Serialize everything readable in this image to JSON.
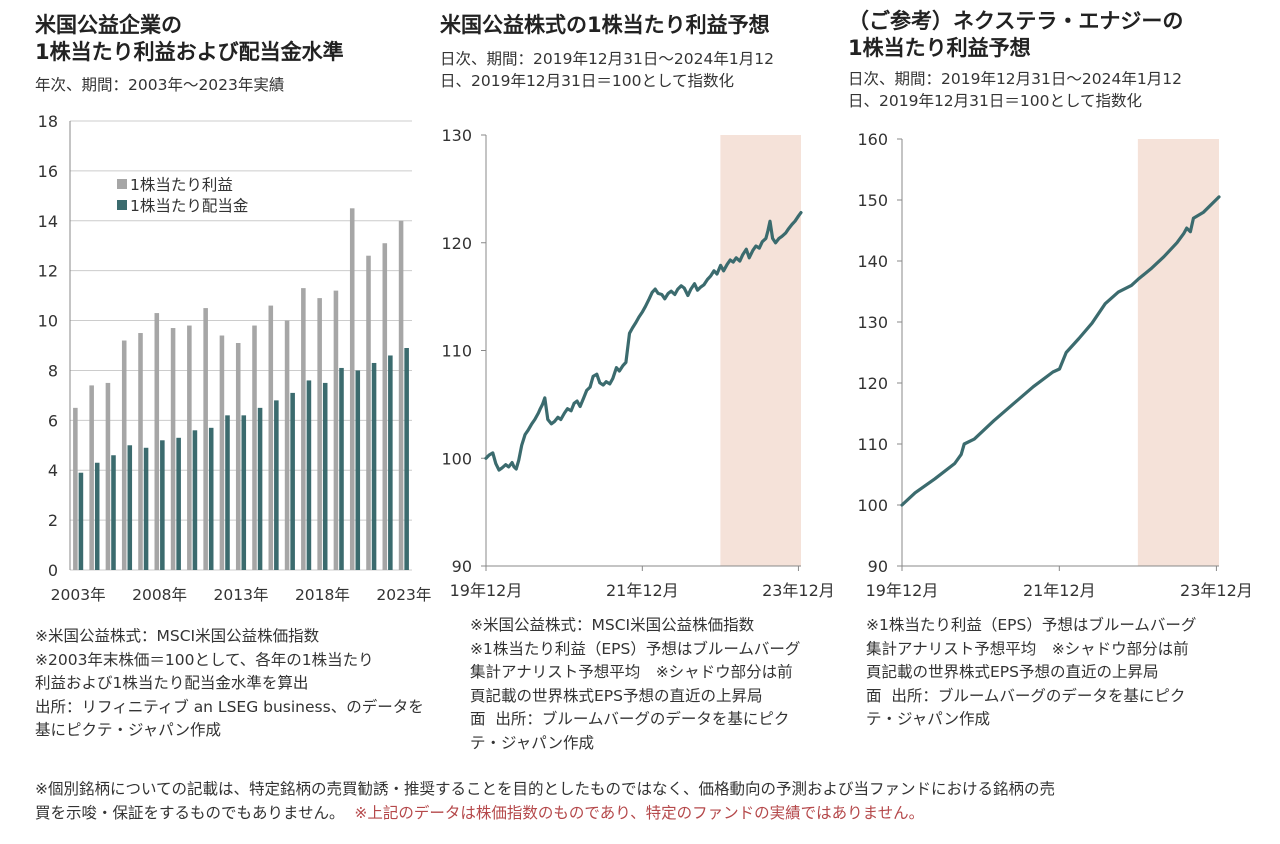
{
  "colors": {
    "eps": "#a6a6a6",
    "dividend": "#3b6b6e",
    "line": "#3b6b6e",
    "shade": "#f5e2d9",
    "axis": "#888888",
    "grid": "#cccccc",
    "red": "#b5494b"
  },
  "panel1": {
    "title": "米国公益企業の\n1株当たり利益および配当金水準",
    "subtitle": "年次、期間：2003年～2023年実績",
    "note": "※米国公益株式：MSCI米国公益株価指数\n※2003年末株価＝100として、各年の1株当たり\n利益および1株当たり配当金水準を算出\n出所：リフィニティブ an LSEG business、のデータを\n基にピクテ・ジャパン作成"
  },
  "panel2": {
    "title": "米国公益株式の1株当たり利益予想",
    "subtitle": "日次、期間：2019年12月31日～2024年1月12\n日、2019年12月31日＝100として指数化",
    "note": "※米国公益株式：MSCI米国公益株価指数\n※1株当たり利益（EPS）予想はブルームバーグ\n集計アナリスト予想平均　※シャドウ部分は前\n頁記載の世界株式EPS予想の直近の上昇局\n面  出所：ブルームバーグのデータを基にピク\nテ・ジャパン作成"
  },
  "panel3": {
    "title": "（ご参考）ネクステラ・エナジーの\n1株当たり利益予想",
    "subtitle": "日次、期間：2019年12月31日～2024年1月12\n日、2019年12月31日＝100として指数化",
    "note": "※1株当たり利益（EPS）予想はブルームバーグ\n集計アナリスト予想平均　※シャドウ部分は前\n頁記載の世界株式EPS予想の直近の上昇局\n面  出所：ブルームバーグのデータを基にピク\nテ・ジャパン作成"
  },
  "footer": {
    "text": "※個別銘柄についての記載は、特定銘柄の売買勧誘・推奨することを目的としたものではなく、価格動向の予測および当ファンドにおける銘柄の売\n買を示唆・保証をするものでもありません。",
    "red": "  ※上記のデータは株価指数のものであり、特定のファンドの実績ではありません。"
  },
  "chart_data": [
    {
      "type": "bar",
      "categories": [
        "2003",
        "2004",
        "2005",
        "2006",
        "2007",
        "2008",
        "2009",
        "2010",
        "2011",
        "2012",
        "2013",
        "2014",
        "2015",
        "2016",
        "2017",
        "2018",
        "2019",
        "2020",
        "2021",
        "2022",
        "2023"
      ],
      "xtick_labels": [
        "2003年",
        "",
        "",
        "",
        "",
        "2008年",
        "",
        "",
        "",
        "",
        "2013年",
        "",
        "",
        "",
        "",
        "2018年",
        "",
        "",
        "",
        "",
        "2023年"
      ],
      "series": [
        {
          "name": "1株当たり利益",
          "values": [
            6.5,
            7.4,
            7.5,
            9.2,
            9.5,
            10.3,
            9.7,
            9.8,
            10.5,
            9.4,
            9.1,
            9.8,
            10.6,
            10.0,
            11.3,
            10.9,
            11.2,
            14.5,
            12.6,
            13.1,
            14.0
          ]
        },
        {
          "name": "1株当たり配当金",
          "values": [
            3.9,
            4.3,
            4.6,
            5.0,
            4.9,
            5.2,
            5.3,
            5.6,
            5.7,
            6.2,
            6.2,
            6.5,
            6.8,
            7.1,
            7.6,
            7.5,
            8.1,
            8.0,
            8.3,
            8.6,
            8.9
          ]
        }
      ],
      "ylim": [
        0,
        18
      ],
      "yticks": [
        0,
        2,
        4,
        6,
        8,
        10,
        12,
        14,
        16,
        18
      ],
      "legend": "top-left",
      "grid": true
    },
    {
      "type": "line",
      "xlim": [
        "2019-12-31",
        "2024-01-12"
      ],
      "xticks": [
        {
          "x": "2019-12-31",
          "label": "19年12月"
        },
        {
          "x": "2021-12-31",
          "label": "21年12月"
        },
        {
          "x": "2023-12-31",
          "label": "23年12月"
        }
      ],
      "ylim": [
        90,
        130
      ],
      "yticks": [
        90,
        100,
        110,
        120,
        130
      ],
      "shaded": [
        "2022-12-31",
        "2024-01-12"
      ],
      "grid": false,
      "series": [
        {
          "x": [
            "2019-12-31",
            "2020-01-15",
            "2020-02-01",
            "2020-02-15",
            "2020-03-01",
            "2020-03-15",
            "2020-04-01",
            "2020-04-15",
            "2020-05-01",
            "2020-05-10",
            "2020-05-20",
            "2020-06-01",
            "2020-06-15",
            "2020-07-01",
            "2020-07-15",
            "2020-08-01",
            "2020-08-15",
            "2020-09-01",
            "2020-09-10",
            "2020-09-20",
            "2020-10-01",
            "2020-10-15",
            "2020-11-01",
            "2020-11-15",
            "2020-12-01",
            "2020-12-15",
            "2021-01-01",
            "2021-01-15",
            "2021-02-01",
            "2021-02-15",
            "2021-03-01",
            "2021-03-15",
            "2021-04-01",
            "2021-04-15",
            "2021-05-01",
            "2021-05-15",
            "2021-06-01",
            "2021-06-15",
            "2021-07-01",
            "2021-07-15",
            "2021-08-01",
            "2021-08-15",
            "2021-09-01",
            "2021-09-15",
            "2021-10-01",
            "2021-10-15",
            "2021-11-01",
            "2021-11-15",
            "2021-12-01",
            "2021-12-15",
            "2022-01-01",
            "2022-01-15",
            "2022-02-01",
            "2022-02-15",
            "2022-03-01",
            "2022-03-15",
            "2022-04-01",
            "2022-04-15",
            "2022-05-01",
            "2022-05-15",
            "2022-06-01",
            "2022-06-15",
            "2022-07-01",
            "2022-07-15",
            "2022-08-01",
            "2022-08-15",
            "2022-09-01",
            "2022-09-15",
            "2022-10-01",
            "2022-10-15",
            "2022-11-01",
            "2022-11-15",
            "2022-12-01",
            "2022-12-15",
            "2023-01-01",
            "2023-01-15",
            "2023-02-01",
            "2023-02-15",
            "2023-03-01",
            "2023-03-15",
            "2023-04-01",
            "2023-04-15",
            "2023-05-01",
            "2023-05-15",
            "2023-06-01",
            "2023-06-15",
            "2023-07-01",
            "2023-07-15",
            "2023-08-01",
            "2023-08-10",
            "2023-08-20",
            "2023-09-01",
            "2023-09-15",
            "2023-10-01",
            "2023-10-15",
            "2023-11-01",
            "2023-11-15",
            "2023-12-01",
            "2023-12-15",
            "2024-01-01",
            "2024-01-12"
          ],
          "y": [
            100.0,
            100.3,
            100.5,
            99.5,
            98.9,
            99.1,
            99.4,
            99.2,
            99.6,
            99.2,
            99.0,
            99.8,
            101.2,
            102.2,
            102.6,
            103.2,
            103.6,
            104.2,
            104.6,
            105.0,
            105.6,
            103.6,
            103.2,
            103.4,
            103.8,
            103.6,
            104.2,
            104.6,
            104.4,
            105.1,
            105.3,
            104.8,
            105.6,
            106.3,
            106.6,
            107.6,
            107.8,
            107.0,
            106.8,
            107.1,
            106.9,
            107.4,
            108.4,
            108.1,
            108.6,
            108.9,
            111.6,
            112.1,
            112.6,
            113.1,
            113.6,
            114.1,
            114.8,
            115.4,
            115.7,
            115.3,
            115.2,
            114.8,
            115.3,
            115.5,
            115.2,
            115.7,
            116.0,
            115.8,
            115.1,
            115.7,
            116.2,
            115.6,
            115.9,
            116.1,
            116.6,
            116.9,
            117.4,
            117.1,
            117.9,
            117.4,
            118.0,
            118.4,
            118.2,
            118.6,
            118.3,
            118.9,
            119.4,
            118.6,
            119.3,
            119.7,
            119.5,
            120.1,
            120.4,
            121.1,
            122.0,
            120.4,
            120.0,
            120.4,
            120.6,
            120.9,
            121.3,
            121.7,
            122.0,
            122.5,
            122.8
          ]
        }
      ]
    },
    {
      "type": "line",
      "xlim": [
        "2019-12-31",
        "2024-01-12"
      ],
      "xticks": [
        {
          "x": "2019-12-31",
          "label": "19年12月"
        },
        {
          "x": "2021-12-31",
          "label": "21年12月"
        },
        {
          "x": "2023-12-31",
          "label": "23年12月"
        }
      ],
      "ylim": [
        90,
        160
      ],
      "yticks": [
        90,
        100,
        110,
        120,
        130,
        140,
        150,
        160
      ],
      "shaded": [
        "2022-12-31",
        "2024-01-12"
      ],
      "grid": false,
      "series": [
        {
          "x": [
            "2019-12-31",
            "2020-03-01",
            "2020-06-01",
            "2020-09-01",
            "2020-10-01",
            "2020-10-15",
            "2020-12-01",
            "2021-03-01",
            "2021-06-01",
            "2021-09-01",
            "2021-12-01",
            "2022-01-01",
            "2022-02-01",
            "2022-04-01",
            "2022-06-01",
            "2022-08-01",
            "2022-10-01",
            "2022-12-01",
            "2023-01-01",
            "2023-03-01",
            "2023-05-01",
            "2023-07-01",
            "2023-08-01",
            "2023-08-15",
            "2023-09-01",
            "2023-09-15",
            "2023-11-01",
            "2024-01-12"
          ],
          "y": [
            100.0,
            102.0,
            104.3,
            106.8,
            108.3,
            110.0,
            110.8,
            113.8,
            116.6,
            119.4,
            121.8,
            122.3,
            125.0,
            127.3,
            129.8,
            133.0,
            134.9,
            136.0,
            137.0,
            138.7,
            140.7,
            143.0,
            144.5,
            145.4,
            144.8,
            147.0,
            148.0,
            150.5
          ]
        }
      ]
    }
  ]
}
